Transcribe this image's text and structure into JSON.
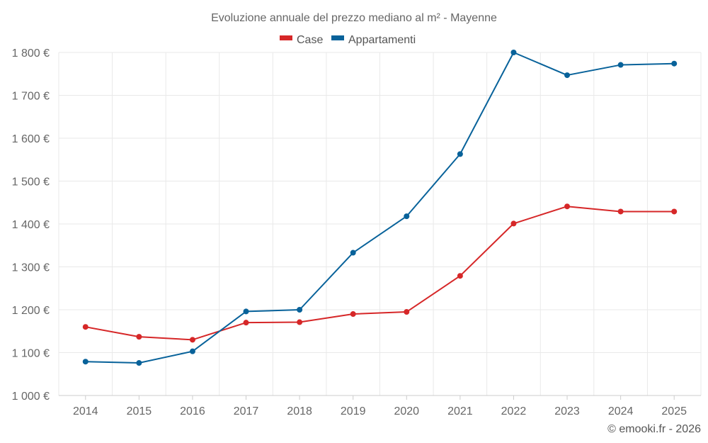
{
  "chart_data": {
    "type": "line",
    "title": "Evoluzione annuale del prezzo mediano al m² - Mayenne",
    "categories": [
      "2014",
      "2015",
      "2016",
      "2017",
      "2018",
      "2019",
      "2020",
      "2021",
      "2022",
      "2023",
      "2024",
      "2025"
    ],
    "series": [
      {
        "name": "Case",
        "color": "#d62728",
        "values": [
          1160,
          1137,
          1130,
          1170,
          1171,
          1190,
          1195,
          1279,
          1401,
          1441,
          1429,
          1429
        ]
      },
      {
        "name": "Appartamenti",
        "color": "#08629a",
        "values": [
          1079,
          1076,
          1103,
          1196,
          1200,
          1333,
          1418,
          1563,
          1800,
          1747,
          1771,
          1774
        ]
      }
    ],
    "ylim": [
      1000,
      1800
    ],
    "yticks": [
      1000,
      1100,
      1200,
      1300,
      1400,
      1500,
      1600,
      1700,
      1800
    ],
    "ytick_labels": [
      "1 000 €",
      "1 100 €",
      "1 200 €",
      "1 300 €",
      "1 400 €",
      "1 500 €",
      "1 600 €",
      "1 700 €",
      "1 800 €"
    ],
    "legend_position": "top-center",
    "grid": true,
    "credit": "© emooki.fr - 2026"
  }
}
